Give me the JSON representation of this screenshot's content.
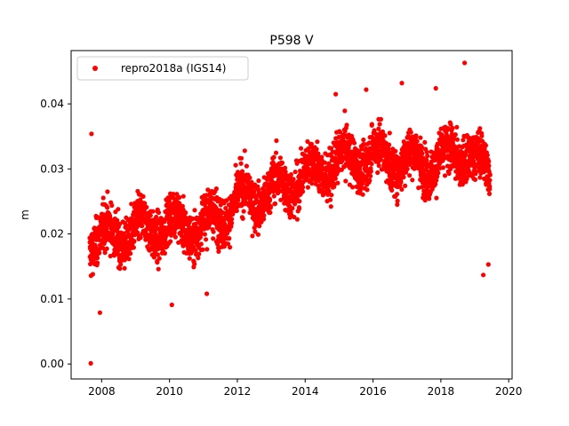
{
  "chart_data": {
    "type": "scatter",
    "title": "P598 V",
    "xlabel": "",
    "ylabel": "m",
    "xlim": [
      2007.1,
      2020.1
    ],
    "ylim": [
      -0.0023,
      0.0482
    ],
    "x_ticks": [
      "2008",
      "2010",
      "2012",
      "2014",
      "2016",
      "2018",
      "2020"
    ],
    "y_ticks": [
      "0.00",
      "0.01",
      "0.02",
      "0.03",
      "0.04"
    ],
    "legend_position": "top-left",
    "grid": false,
    "series": [
      {
        "name": "repro2018a (IGS14)",
        "color": "#ff0000",
        "x_range": [
          2007.65,
          2019.45
        ],
        "trend": [
          [
            2007.65,
            0.019
          ],
          [
            2010.0,
            0.0215
          ],
          [
            2011.0,
            0.021
          ],
          [
            2012.0,
            0.025
          ],
          [
            2013.0,
            0.0265
          ],
          [
            2014.0,
            0.029
          ],
          [
            2015.0,
            0.031
          ],
          [
            2016.0,
            0.032
          ],
          [
            2017.0,
            0.031
          ],
          [
            2018.0,
            0.031
          ],
          [
            2018.7,
            0.033
          ],
          [
            2019.45,
            0.029
          ]
        ],
        "outliers": [
          [
            2007.68,
            0.0001
          ],
          [
            2007.7,
            0.0354
          ],
          [
            2007.95,
            0.0079
          ],
          [
            2010.07,
            0.0091
          ],
          [
            2018.7,
            0.0463
          ],
          [
            2016.85,
            0.0432
          ],
          [
            2015.8,
            0.0422
          ],
          [
            2017.85,
            0.0424
          ],
          [
            2014.9,
            0.0415
          ],
          [
            2019.25,
            0.0137
          ],
          [
            2019.4,
            0.0153
          ],
          [
            2011.1,
            0.0108
          ]
        ]
      }
    ]
  }
}
